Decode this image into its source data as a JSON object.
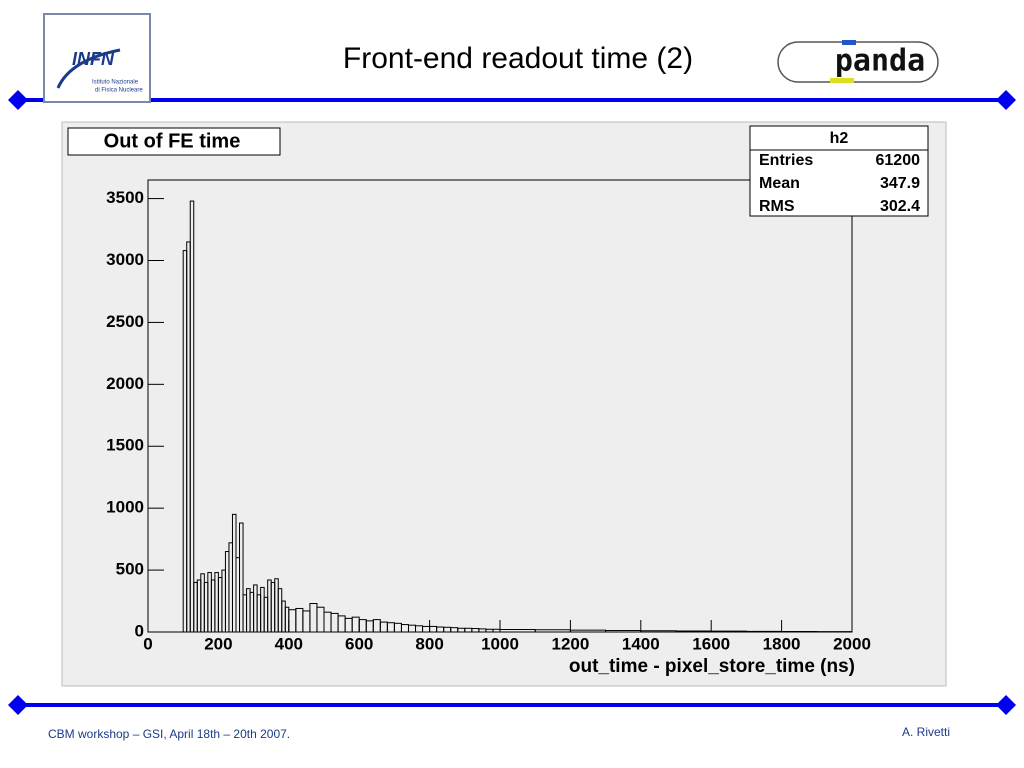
{
  "slide": {
    "title": "Front-end readout time (2)",
    "footer_left": "CBM workshop – GSI, April 18th – 20th 2007.",
    "footer_right": "A. Rivetti",
    "logo_left": {
      "name": "INFN",
      "line1": "Istituto Nazionale",
      "line2": "di Fisica Nucleare"
    },
    "logo_right": "panda"
  },
  "chart_data": {
    "type": "histogram",
    "title": "Out of FE time",
    "x_label": "out_time - pixel_store_time (ns)",
    "color": "#000000",
    "bins": [
      100,
      110,
      120,
      130,
      140,
      150,
      160,
      170,
      180,
      190,
      200,
      210,
      220,
      230,
      240,
      250,
      260,
      270,
      280,
      290,
      300,
      310,
      320,
      330,
      340,
      350,
      360,
      370,
      380,
      390,
      400,
      420,
      440,
      460,
      480,
      500,
      520,
      540,
      560,
      580,
      600,
      620,
      640,
      660,
      680,
      700,
      720,
      740,
      760,
      780,
      800,
      820,
      840,
      860,
      880,
      900,
      920,
      940,
      960,
      980,
      1000,
      1100,
      1200,
      1300,
      1400,
      1500,
      1600,
      1700,
      1800,
      1900,
      2000
    ],
    "values": [
      3080,
      3150,
      3480,
      400,
      420,
      470,
      400,
      480,
      420,
      480,
      440,
      500,
      650,
      720,
      950,
      600,
      880,
      300,
      350,
      320,
      380,
      300,
      360,
      280,
      420,
      400,
      430,
      350,
      250,
      200,
      180,
      190,
      170,
      230,
      200,
      160,
      150,
      130,
      110,
      120,
      100,
      90,
      100,
      80,
      75,
      70,
      60,
      55,
      50,
      45,
      45,
      40,
      38,
      35,
      30,
      30,
      28,
      25,
      22,
      22,
      20,
      18,
      15,
      12,
      10,
      8,
      7,
      5,
      4,
      3
    ],
    "xlim": [
      0,
      2000
    ],
    "xticks": [
      0,
      200,
      400,
      600,
      800,
      1000,
      1200,
      1400,
      1600,
      1800,
      2000
    ],
    "ylim": [
      0,
      3650
    ],
    "yticks": [
      0,
      500,
      1000,
      1500,
      2000,
      2500,
      3000,
      3500
    ],
    "stats": {
      "title": "h2",
      "rows": [
        [
          "Entries",
          61200
        ],
        [
          "Mean",
          347.9
        ],
        [
          "RMS",
          302.4
        ]
      ]
    }
  }
}
